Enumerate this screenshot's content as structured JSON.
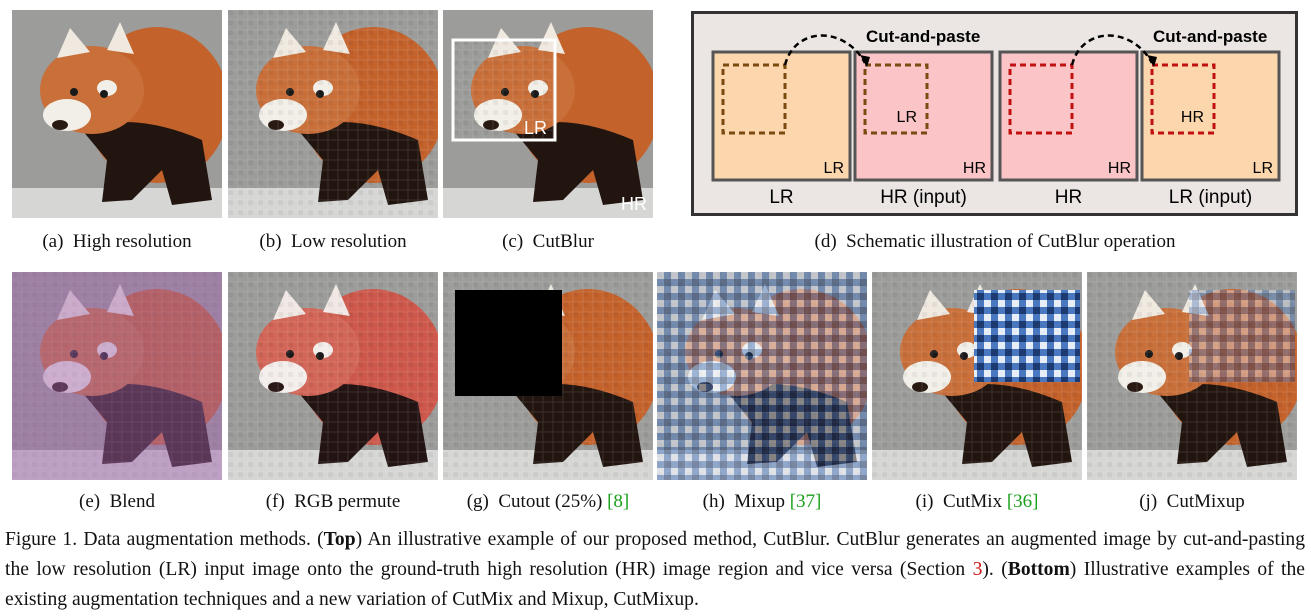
{
  "figure": {
    "top_panels": [
      {
        "caption": "(a)  High resolution"
      },
      {
        "caption": "(b)  Low resolution"
      },
      {
        "caption": "(c)  CutBlur",
        "inner_label": "LR",
        "outer_label": "HR"
      }
    ],
    "schematic": {
      "caption": "(d)  Schematic illustration of CutBlur operation",
      "arrows": [
        "Cut-and-paste",
        "Cut-and-paste"
      ],
      "boxes": [
        {
          "corner": "LR",
          "caption": "LR"
        },
        {
          "corner": "HR",
          "inner": "LR",
          "caption": "HR (input)"
        },
        {
          "corner": "HR",
          "caption": "HR"
        },
        {
          "corner": "LR",
          "inner": "HR",
          "caption": "LR (input)"
        }
      ]
    },
    "bottom_panels": [
      {
        "caption": "(e)  Blend"
      },
      {
        "caption": "(f)  RGB permute"
      },
      {
        "caption": "(g)  Cutout (25%)",
        "citation": "[8]"
      },
      {
        "caption": "(h)  Mixup",
        "citation": "[37]"
      },
      {
        "caption": "(i)  CutMix",
        "citation": "[36]"
      },
      {
        "caption": "(j)  CutMixup"
      }
    ],
    "caption": [
      {
        "text": "Figure 1. Data augmentation methods. (",
        "style": "normal"
      },
      {
        "text": "Top",
        "style": "bold"
      },
      {
        "text": ") An illustrative example of our proposed method, CutBlur. CutBlur generates an augmented image by cut-and-pasting the low resolution (LR) input image onto the ground-truth high resolution (HR) image region and vice versa (Section ",
        "style": "normal"
      },
      {
        "text": "3",
        "style": "ref"
      },
      {
        "text": "). (",
        "style": "normal"
      },
      {
        "text": "Bottom",
        "style": "bold"
      },
      {
        "text": ") Illustrative examples of the existing augmentation techniques and a new variation of CutMix and Mixup, CutMixup.",
        "style": "normal"
      }
    ]
  }
}
